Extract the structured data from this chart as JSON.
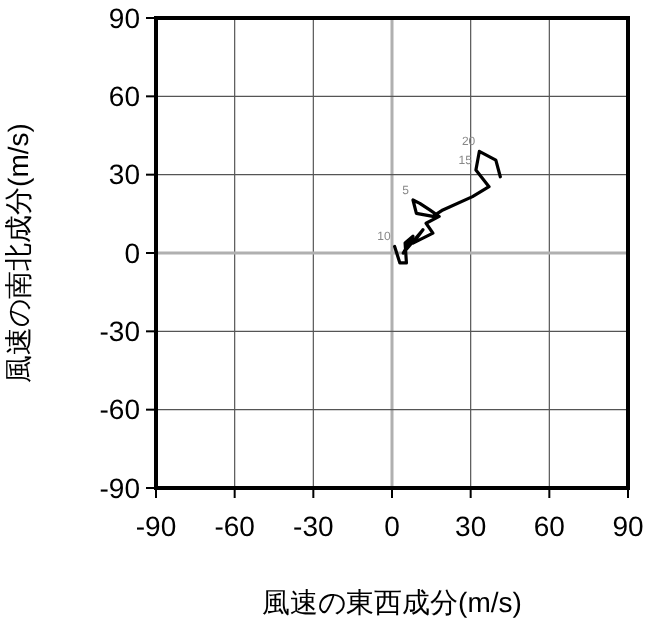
{
  "chart_data": {
    "type": "line",
    "xlabel": "風速の東西成分(m/s)",
    "ylabel": "風速の南北成分(m/s)",
    "xlim": [
      -90,
      90
    ],
    "ylim": [
      -90,
      90
    ],
    "xticks": [
      -90,
      -60,
      -30,
      0,
      30,
      60,
      90
    ],
    "yticks": [
      -90,
      -60,
      -30,
      0,
      30,
      60,
      90
    ],
    "grid": true,
    "series": [
      {
        "color": "#000000",
        "x": [
          1,
          3,
          5.5,
          5,
          8,
          4.3,
          11.8,
          8,
          15.6,
          13,
          18,
          14.4,
          10.6,
          8,
          9.3,
          15.6,
          19.4,
          30.7,
          37,
          32,
          33.3,
          39.6,
          41.3
        ],
        "values": [
          2.5,
          -3.8,
          -3.8,
          3.8,
          6.4,
          0,
          8.9,
          3.8,
          7.6,
          11.4,
          14,
          16.5,
          19,
          20.3,
          15.2,
          14,
          16.5,
          21.6,
          25.4,
          31.8,
          38.9,
          35.6,
          29.2
        ]
      }
    ],
    "annotations": [
      {
        "text": "10",
        "x": 1,
        "y": 2.5
      },
      {
        "text": "5",
        "x": 8,
        "y": 20.3
      },
      {
        "text": "15",
        "x": 32,
        "y": 31.8
      },
      {
        "text": "20",
        "x": 33.3,
        "y": 38.9
      }
    ]
  }
}
